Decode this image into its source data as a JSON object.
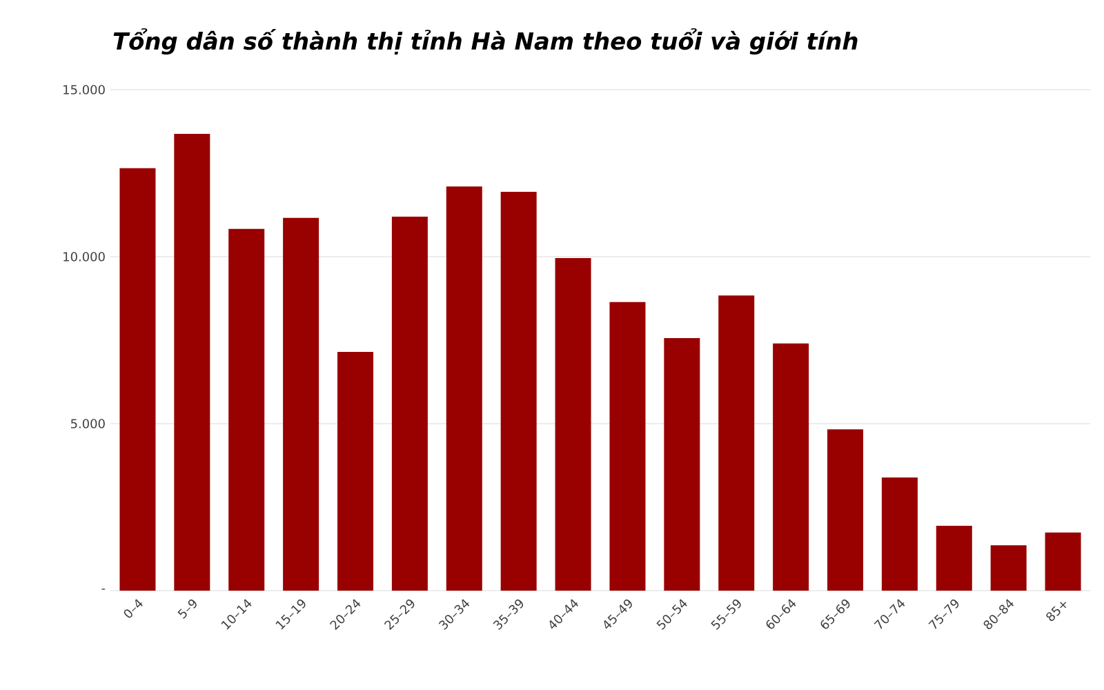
{
  "chart_data": {
    "type": "bar",
    "title": "Tổng dân số thành thị tỉnh Hà Nam theo tuổi và giới tính",
    "categories": [
      "0–4",
      "5–9",
      "10–14",
      "15–19",
      "20–24",
      "25–29",
      "30–34",
      "35–39",
      "40–44",
      "45–49",
      "50–54",
      "55–59",
      "60–64",
      "65–69",
      "70–74",
      "75–79",
      "80–84",
      "85+"
    ],
    "values": [
      12650,
      13680,
      10830,
      11160,
      7150,
      11200,
      12100,
      11940,
      9960,
      8640,
      7560,
      8840,
      7400,
      4830,
      3390,
      1940,
      1360,
      1740
    ],
    "color": "#990000",
    "ylim": [
      0,
      15000
    ],
    "yticks": [
      {
        "value": 0,
        "label": "-"
      },
      {
        "value": 5000,
        "label": "5.000"
      },
      {
        "value": 10000,
        "label": "10.000"
      },
      {
        "value": 15000,
        "label": "15.000"
      }
    ],
    "grid": "y"
  }
}
